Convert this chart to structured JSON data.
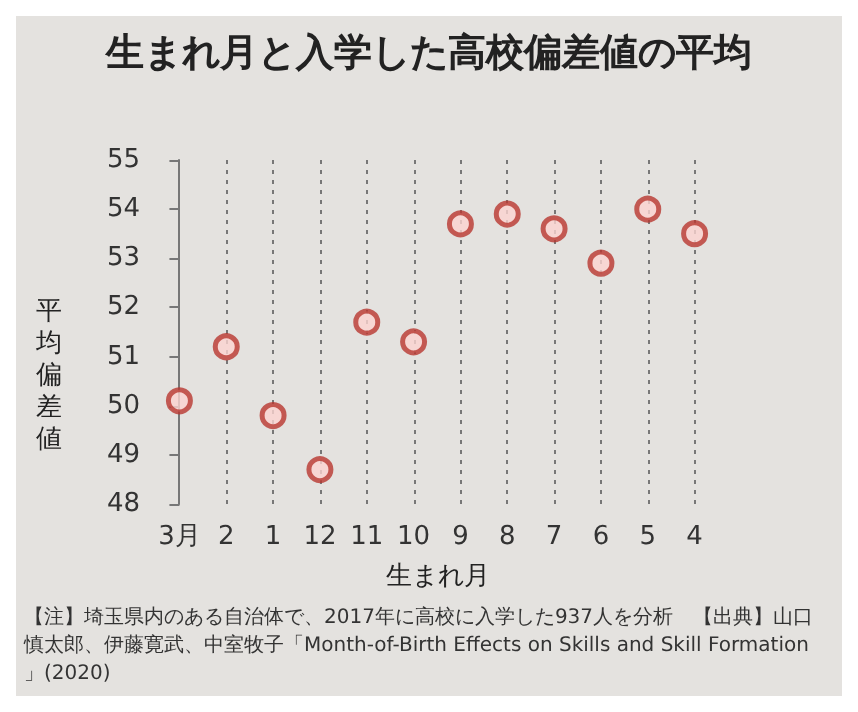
{
  "chart_data": {
    "type": "scatter",
    "title": "生まれ月と入学した高校偏差値の平均",
    "xlabel": "生まれ月",
    "ylabel": "平均偏差値",
    "categories": [
      "3月",
      "2",
      "1",
      "12",
      "11",
      "10",
      "9",
      "8",
      "7",
      "6",
      "5",
      "4"
    ],
    "values": [
      50.1,
      51.2,
      49.8,
      48.7,
      51.7,
      51.3,
      53.7,
      53.9,
      53.6,
      52.9,
      54.0,
      53.5
    ],
    "color": "#b8372f",
    "marker": "circle",
    "grid": "x",
    "ylim": [
      48,
      55
    ],
    "yticks": [
      48,
      49,
      50,
      51,
      52,
      53,
      54,
      55
    ],
    "annotations": [
      "【注】埼玉県内のある自治体で、2017年に高校に入学した937人を分析",
      "【出典】山口慎太郎、伊藤寛武、中室牧子「Month-of-Birth Effects on Skills and Skill Formation」(2020)"
    ]
  }
}
